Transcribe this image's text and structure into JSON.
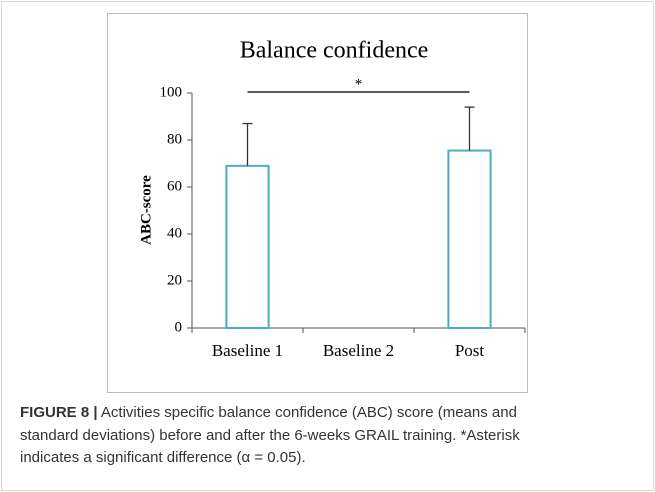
{
  "chart_data": {
    "type": "bar",
    "title": "Balance confidence",
    "ylabel": "ABC-score",
    "categories": [
      "Baseline 1",
      "Baseline 2",
      "Post"
    ],
    "values": [
      69,
      null,
      75.5
    ],
    "errors": [
      18,
      null,
      18.5
    ],
    "color": "#4bacc6",
    "ylim": [
      0,
      100
    ],
    "yticks": [
      0,
      20,
      40,
      60,
      80,
      100
    ],
    "annotation": "*"
  },
  "caption": {
    "label": "FIGURE 8 |",
    "lines": [
      "Activities specific balance confidence (ABC) score (means and",
      "standard deviations) before and after the 6-weeks GRAIL training. *Asterisk",
      "indicates a significant difference (α = 0.05)."
    ]
  }
}
